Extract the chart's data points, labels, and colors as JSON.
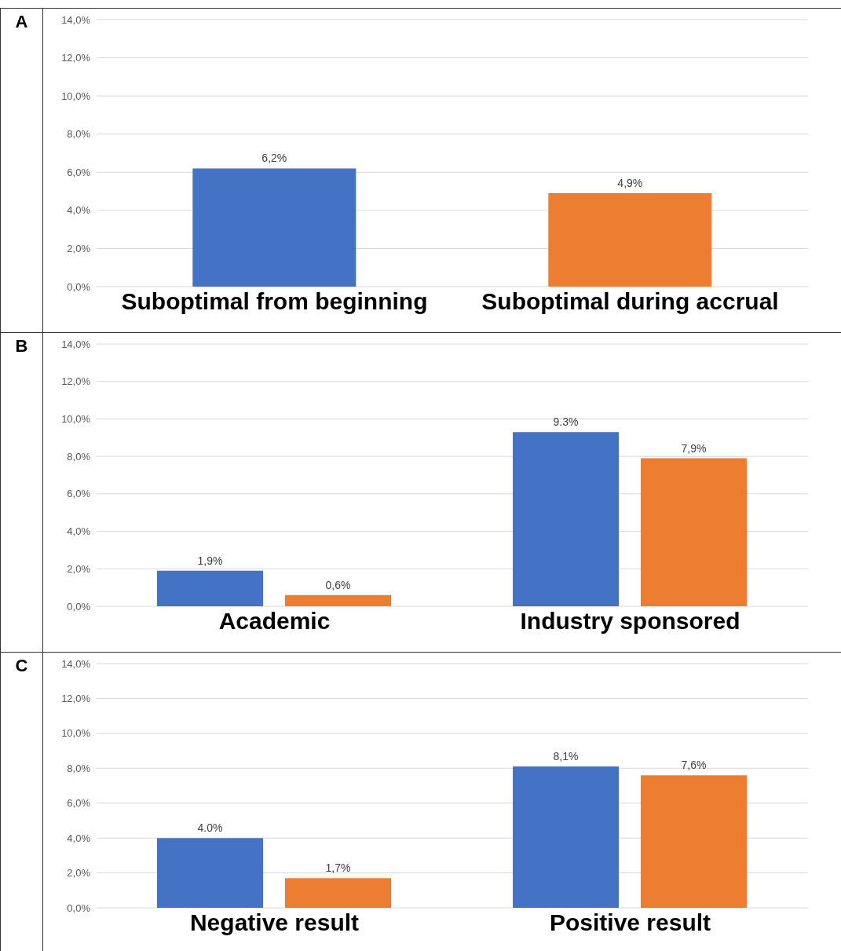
{
  "chart_data": [
    {
      "type": "bar",
      "title": "A",
      "categories": [
        "Suboptimal from beginning",
        "Suboptimal during accrual"
      ],
      "values": [
        6.2,
        4.9
      ],
      "colors": [
        "#4472c4",
        "#ed7d31"
      ],
      "value_labels": [
        "6,2%",
        "4,9%"
      ],
      "ylim": [
        0,
        14
      ],
      "yticks": [
        {
          "value": 0,
          "label": "0,0%"
        },
        {
          "value": 2,
          "label": "2,0%"
        },
        {
          "value": 4,
          "label": "4,0%"
        },
        {
          "value": 6,
          "label": "6,0%"
        },
        {
          "value": 8,
          "label": "8,0%"
        },
        {
          "value": 10,
          "label": "10,0%"
        },
        {
          "value": 12,
          "label": "12,0%"
        },
        {
          "value": 14,
          "label": "14,0%"
        }
      ],
      "grid": "y"
    },
    {
      "type": "bar",
      "title": "B",
      "categories": [
        "Academic",
        "Industry sponsored"
      ],
      "series": [
        {
          "color": "#4472c4",
          "values": [
            1.9,
            9.3
          ],
          "value_labels": [
            "1,9%",
            "9.3%"
          ]
        },
        {
          "color": "#ed7d31",
          "values": [
            0.6,
            7.9
          ],
          "value_labels": [
            "0,6%",
            "7,9%"
          ]
        }
      ],
      "ylim": [
        0,
        14
      ],
      "yticks": [
        {
          "value": 0,
          "label": "0,0%"
        },
        {
          "value": 2,
          "label": "2,0%"
        },
        {
          "value": 4,
          "label": "4,0%"
        },
        {
          "value": 6,
          "label": "6,0%"
        },
        {
          "value": 8,
          "label": "8,0%"
        },
        {
          "value": 10,
          "label": "10,0%"
        },
        {
          "value": 12,
          "label": "12,0%"
        },
        {
          "value": 14,
          "label": "14,0%"
        }
      ],
      "grid": "y"
    },
    {
      "type": "bar",
      "title": "C",
      "categories": [
        "Negative result",
        "Positive result"
      ],
      "series": [
        {
          "color": "#4472c4",
          "values": [
            4.0,
            8.1
          ],
          "value_labels": [
            "4.0%",
            "8,1%"
          ]
        },
        {
          "color": "#ed7d31",
          "values": [
            1.7,
            7.6
          ],
          "value_labels": [
            "1,7%",
            "7,6%"
          ]
        }
      ],
      "ylim": [
        0,
        14
      ],
      "yticks": [
        {
          "value": 0,
          "label": "0,0%"
        },
        {
          "value": 2,
          "label": "2,0%"
        },
        {
          "value": 4,
          "label": "4,0%"
        },
        {
          "value": 6,
          "label": "6,0%"
        },
        {
          "value": 8,
          "label": "8,0%"
        },
        {
          "value": 10,
          "label": "10,0%"
        },
        {
          "value": 12,
          "label": "12,0%"
        },
        {
          "value": 14,
          "label": "14,0%"
        }
      ],
      "grid": "y"
    }
  ]
}
